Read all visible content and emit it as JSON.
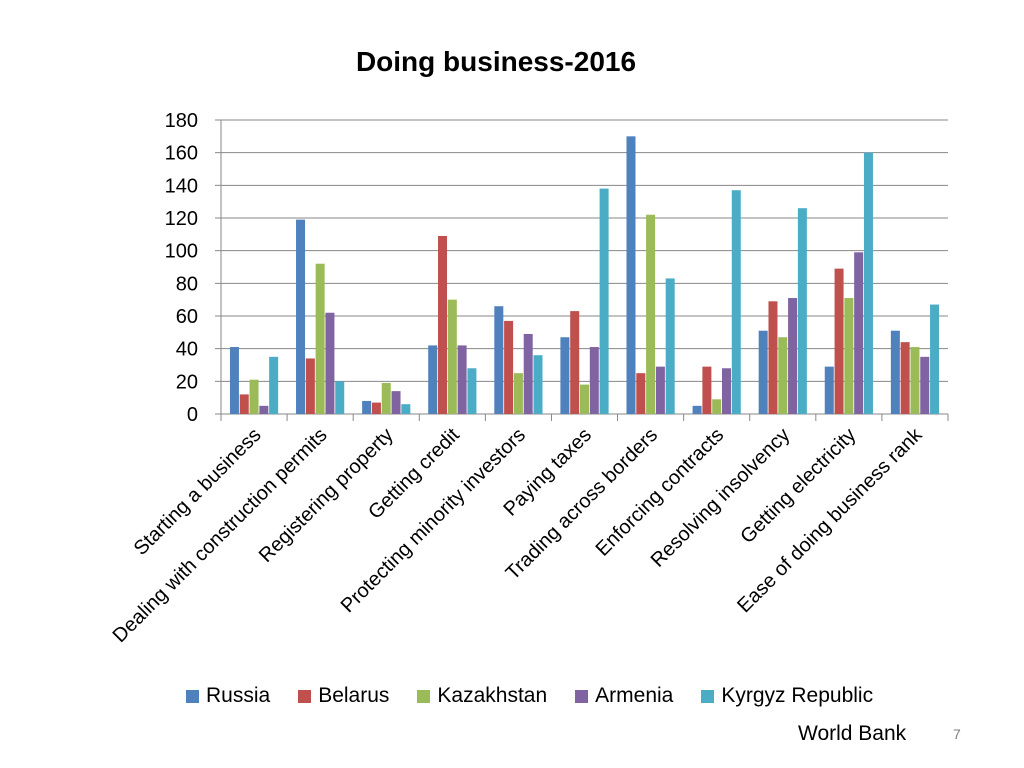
{
  "slide": {
    "source": "World Bank",
    "page_number": "7"
  },
  "chart_data": {
    "type": "bar",
    "title": "Doing business-2016",
    "categories": [
      "Starting a business",
      "Dealing with construction permits",
      "Registering property",
      "Getting credit",
      "Protecting minority investors",
      "Paying taxes",
      "Trading across borders",
      "Enforcing contracts",
      "Resolving insolvency",
      "Getting electricity",
      "Ease of doing business rank"
    ],
    "series": [
      {
        "name": "Russia",
        "color": "#4F81BD",
        "values": [
          41,
          119,
          8,
          42,
          66,
          47,
          170,
          5,
          51,
          29,
          51
        ]
      },
      {
        "name": "Belarus",
        "color": "#C0504D",
        "values": [
          12,
          34,
          7,
          109,
          57,
          63,
          25,
          29,
          69,
          89,
          44
        ]
      },
      {
        "name": "Kazakhstan",
        "color": "#9BBB59",
        "values": [
          21,
          92,
          19,
          70,
          25,
          18,
          122,
          9,
          47,
          71,
          41
        ]
      },
      {
        "name": "Armenia",
        "color": "#8064A2",
        "values": [
          5,
          62,
          14,
          42,
          49,
          41,
          29,
          28,
          71,
          99,
          35
        ]
      },
      {
        "name": "Kyrgyz Republic",
        "color": "#4BACC6",
        "values": [
          35,
          20,
          6,
          28,
          36,
          138,
          83,
          137,
          126,
          160,
          67
        ]
      }
    ],
    "ylim": [
      0,
      180
    ],
    "yticks": [
      0,
      20,
      40,
      60,
      80,
      100,
      120,
      140,
      160,
      180
    ],
    "grid": true,
    "legend_position": "bottom"
  }
}
